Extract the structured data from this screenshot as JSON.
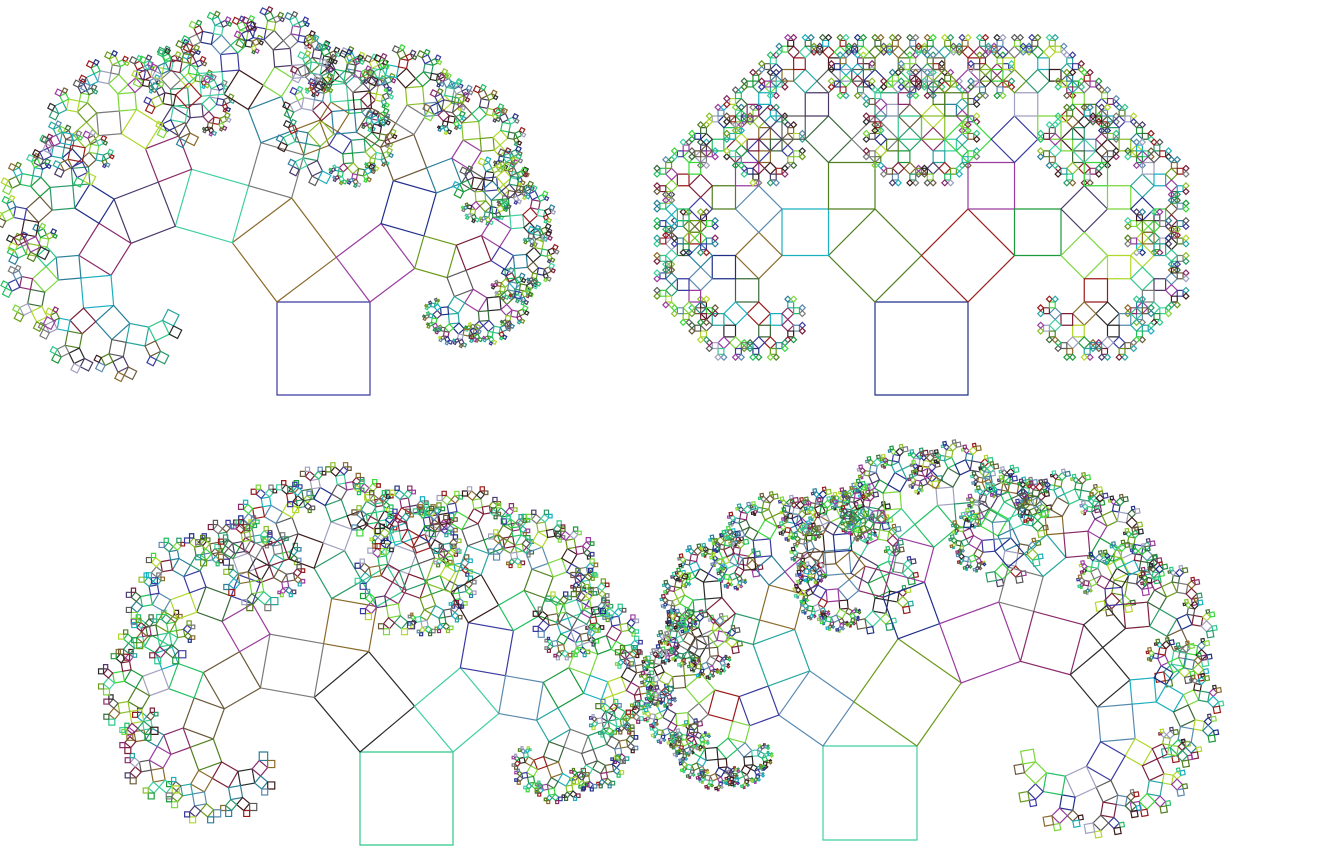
{
  "figure": {
    "kind": "pythagoras-tree-fractals",
    "background_color": "#ffffff",
    "trees": [
      {
        "id": "tree-top-left",
        "depth": 9,
        "left_angle_deg": 37,
        "trunk_color": "#3a3aa0"
      },
      {
        "id": "tree-top-right",
        "depth": 9,
        "left_angle_deg": 45,
        "trunk_color": "#1f2f8a"
      },
      {
        "id": "tree-bottom-left",
        "depth": 9,
        "left_angle_deg": 40,
        "trunk_color": "#2fc88a"
      },
      {
        "id": "tree-bottom-right",
        "depth": 10,
        "left_angle_deg": 55,
        "trunk_color": "#3fd0a0"
      }
    ],
    "palette": [
      "#1f2f8a",
      "#3a3aa0",
      "#4f7f1f",
      "#6a9a1a",
      "#8ac02a",
      "#2fc88a",
      "#3fd0a0",
      "#26a6a0",
      "#2a7f9a",
      "#7a1f3a",
      "#8a2a6a",
      "#9a3aa0",
      "#5a5a5a",
      "#7a7a7a",
      "#2a2a2a",
      "#3a6a3a",
      "#1a9a3a",
      "#38d838",
      "#7ad83a",
      "#b0d82a",
      "#6a5a3a",
      "#8a6a2a",
      "#4a3a6a",
      "#2a9a6a",
      "#1ab0c0",
      "#5a8ab0",
      "#a0a0c0",
      "#3a1a1a",
      "#9a1a1a",
      "#20c060"
    ]
  }
}
